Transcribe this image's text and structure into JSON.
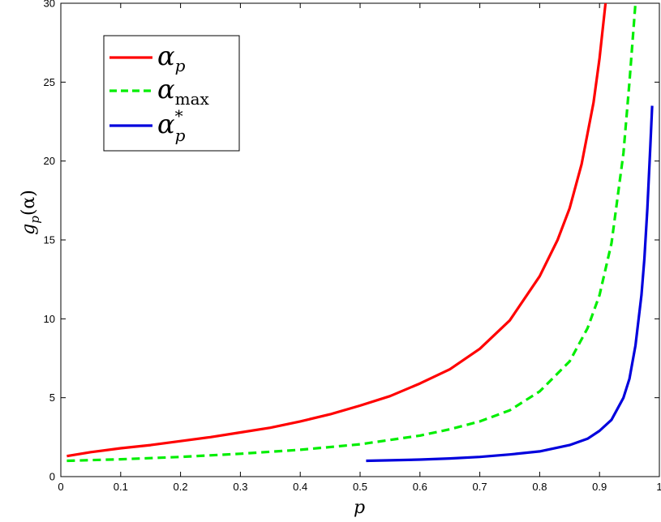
{
  "chart_data": {
    "type": "line",
    "xlabel": "p",
    "ylabel": "g",
    "ylabel_sub": "p",
    "ylabel_arg": "(α)",
    "xlim": [
      0,
      1
    ],
    "ylim": [
      0,
      30
    ],
    "xticks": [
      0,
      0.1,
      0.2,
      0.3,
      0.4,
      0.5,
      0.6,
      0.7,
      0.8,
      0.9,
      1
    ],
    "xtick_labels": [
      "0",
      "0.1",
      "0.2",
      "0.3",
      "0.4",
      "0.5",
      "0.6",
      "0.7",
      "0.8",
      "0.9",
      "1"
    ],
    "yticks": [
      0,
      5,
      10,
      15,
      20,
      25,
      30
    ],
    "ytick_labels": [
      "0",
      "5",
      "10",
      "15",
      "20",
      "25",
      "30"
    ],
    "grid": false,
    "legend_position": "top-left",
    "series": [
      {
        "name": "α_p",
        "legend_main": "α",
        "legend_sub": "p",
        "legend_sup": "",
        "color": "#ff0000",
        "style": "solid",
        "x": [
          0.01,
          0.05,
          0.1,
          0.15,
          0.2,
          0.25,
          0.3,
          0.35,
          0.4,
          0.45,
          0.5,
          0.55,
          0.6,
          0.65,
          0.7,
          0.75,
          0.8,
          0.83,
          0.85,
          0.87,
          0.89,
          0.9,
          0.91
        ],
        "y": [
          1.3,
          1.55,
          1.8,
          2.0,
          2.25,
          2.5,
          2.8,
          3.1,
          3.5,
          3.95,
          4.5,
          5.1,
          5.9,
          6.8,
          8.1,
          9.9,
          12.7,
          15.0,
          17.0,
          19.8,
          23.7,
          26.5,
          30.0
        ]
      },
      {
        "name": "α_max",
        "legend_main": "α",
        "legend_sub": "max",
        "legend_sup": "",
        "color": "#00ee00",
        "style": "dashed",
        "x": [
          0.01,
          0.1,
          0.2,
          0.3,
          0.4,
          0.5,
          0.6,
          0.65,
          0.7,
          0.75,
          0.8,
          0.85,
          0.88,
          0.9,
          0.92,
          0.94,
          0.95,
          0.96
        ],
        "y": [
          1.0,
          1.1,
          1.25,
          1.45,
          1.7,
          2.05,
          2.6,
          3.0,
          3.5,
          4.2,
          5.4,
          7.3,
          9.4,
          11.5,
          14.8,
          20.5,
          25.0,
          30.0
        ]
      },
      {
        "name": "α*_p",
        "legend_main": "α",
        "legend_sub": "p",
        "legend_sup": "*",
        "color": "#0000dd",
        "style": "solid",
        "x": [
          0.51,
          0.55,
          0.6,
          0.65,
          0.7,
          0.75,
          0.8,
          0.85,
          0.88,
          0.9,
          0.92,
          0.94,
          0.95,
          0.96,
          0.97,
          0.975,
          0.98,
          0.985,
          0.988
        ],
        "y": [
          1.0,
          1.03,
          1.08,
          1.15,
          1.25,
          1.4,
          1.6,
          2.0,
          2.4,
          2.9,
          3.6,
          5.0,
          6.2,
          8.3,
          11.5,
          13.8,
          17.0,
          21.0,
          23.5
        ]
      }
    ]
  }
}
